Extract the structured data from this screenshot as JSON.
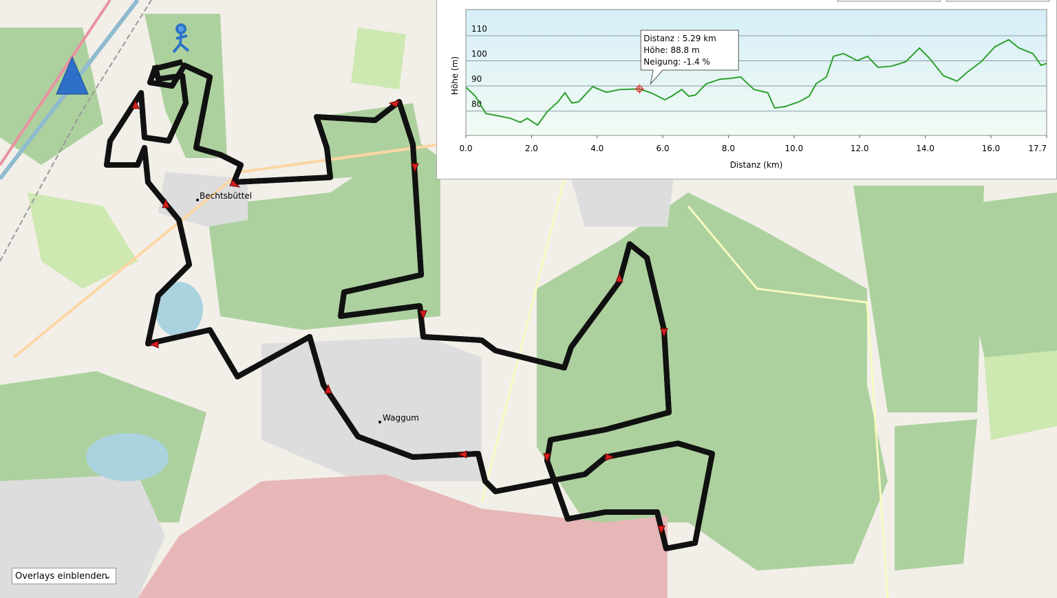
{
  "map": {
    "place_labels": [
      "Bechtsbüttel",
      "Waggum"
    ],
    "overlay_select": "Overlays einblenden"
  },
  "chart_data": {
    "type": "line",
    "xlabel": "Distanz  (km)",
    "ylabel": "Höhe (m)",
    "x": [
      0,
      0.29,
      0.61,
      0.94,
      1.36,
      1.66,
      1.87,
      2.18,
      2.49,
      2.81,
      3.02,
      3.23,
      3.44,
      3.86,
      4.28,
      4.7,
      5.29,
      5.64,
      6.06,
      6.27,
      6.58,
      6.79,
      7.0,
      7.32,
      7.74,
      8.05,
      8.37,
      8.78,
      9.2,
      9.41,
      9.73,
      10.15,
      10.46,
      10.67,
      10.99,
      11.2,
      11.51,
      11.93,
      12.24,
      12.56,
      12.98,
      13.4,
      13.82,
      14.13,
      14.55,
      14.97,
      15.28,
      15.7,
      16.12,
      16.54,
      16.86,
      17.28,
      17.53,
      17.7
    ],
    "series": [
      {
        "color": "#2ca02c",
        "values": [
          89.5,
          85.9,
          79.0,
          78.2,
          77.1,
          75.5,
          77.1,
          74.4,
          79.9,
          83.7,
          87.3,
          83.2,
          83.7,
          89.7,
          87.5,
          88.6,
          88.8,
          87.3,
          84.5,
          85.9,
          88.6,
          85.9,
          86.4,
          90.8,
          92.7,
          93.0,
          93.6,
          88.6,
          87.3,
          81.2,
          81.8,
          83.7,
          85.9,
          90.8,
          93.6,
          101.8,
          102.9,
          100.1,
          101.8,
          97.4,
          97.9,
          99.6,
          105.1,
          101.0,
          94.1,
          91.9,
          95.5,
          99.6,
          105.6,
          108.4,
          105.1,
          102.9,
          98.2,
          99.0
        ]
      }
    ],
    "xlim": [
      0,
      17.7
    ],
    "ylim": [
      70.3,
      120.4
    ],
    "xticks": [
      {
        "value": 0,
        "label": "0.0"
      },
      {
        "value": 2,
        "label": "2.0"
      },
      {
        "value": 4,
        "label": "4.0"
      },
      {
        "value": 6,
        "label": "6.0"
      },
      {
        "value": 8,
        "label": "8.0"
      },
      {
        "value": 10,
        "label": "10.0"
      },
      {
        "value": 12,
        "label": "12.0"
      },
      {
        "value": 14,
        "label": "14.0"
      },
      {
        "value": 16,
        "label": "16.0"
      },
      17.7
    ],
    "yticks": [
      80,
      90,
      100,
      110
    ],
    "grid": true,
    "tooltip": [
      "Distanz  : 5.29 km",
      "Höhe: 88.8 m",
      "Neigung: -1.4 %"
    ]
  }
}
